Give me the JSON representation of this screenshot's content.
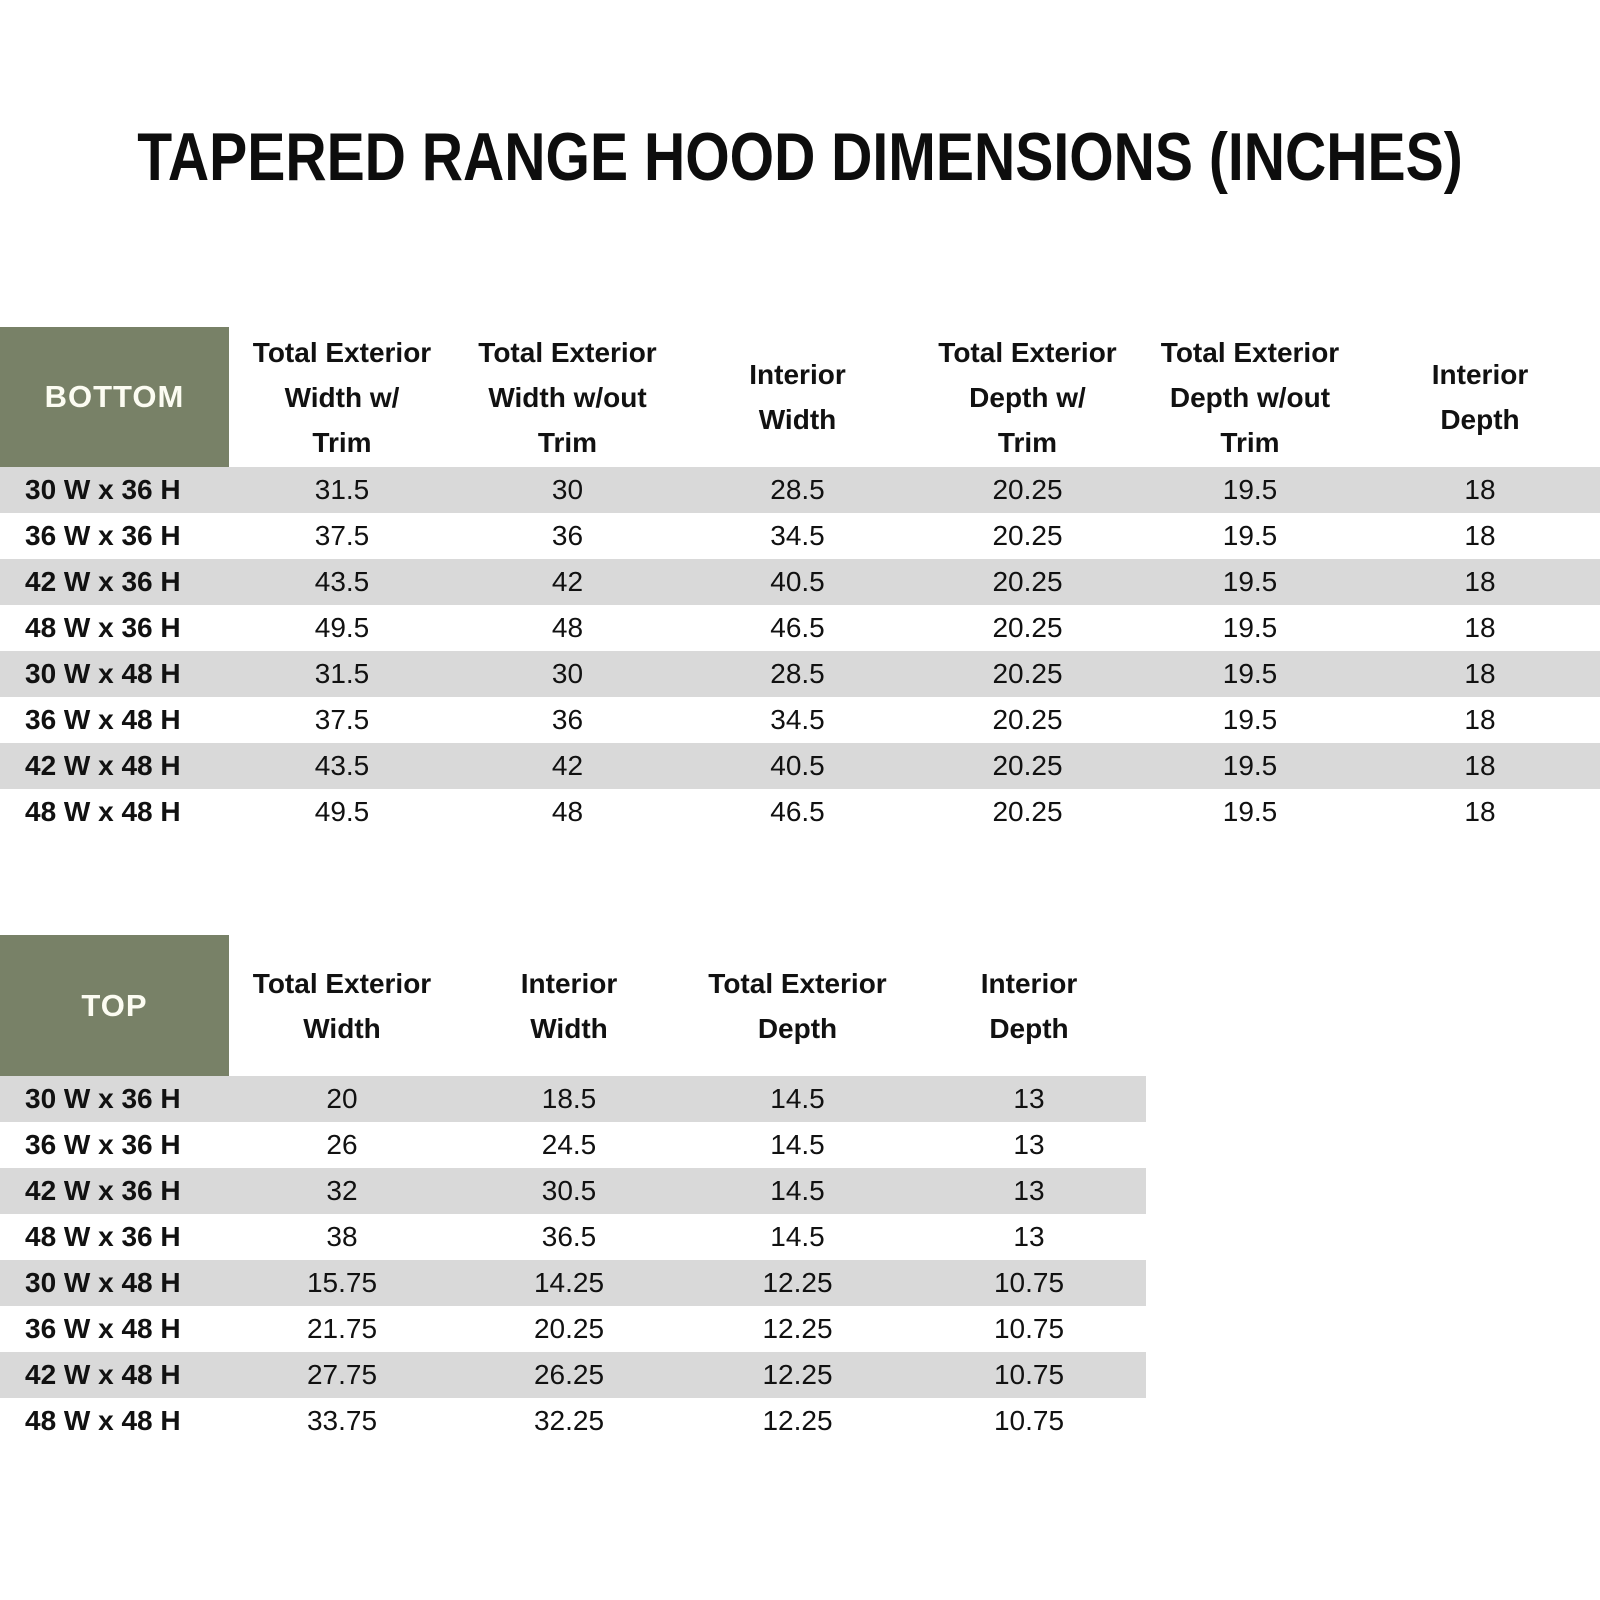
{
  "title": "TAPERED RANGE HOOD DIMENSIONS (INCHES)",
  "colors": {
    "header_green": "#788167",
    "row_gray": "#d9d9d9",
    "row_white": "#ffffff",
    "corner_text": "#fcfcf2",
    "body_text": "#111111"
  },
  "bottom_table": {
    "corner_label": "BOTTOM",
    "columns": [
      "Total Exterior\nWidth w/\nTrim",
      "Total Exterior\nWidth w/out\nTrim",
      "Interior\nWidth",
      "Total Exterior\nDepth w/\nTrim",
      "Total Exterior\nDepth w/out\nTrim",
      "Interior\nDepth"
    ],
    "rows": [
      {
        "label": "30 W x 36 H",
        "values": [
          "31.5",
          "30",
          "28.5",
          "20.25",
          "19.5",
          "18"
        ]
      },
      {
        "label": "36 W x 36 H",
        "values": [
          "37.5",
          "36",
          "34.5",
          "20.25",
          "19.5",
          "18"
        ]
      },
      {
        "label": "42 W x 36 H",
        "values": [
          "43.5",
          "42",
          "40.5",
          "20.25",
          "19.5",
          "18"
        ]
      },
      {
        "label": "48 W x 36 H",
        "values": [
          "49.5",
          "48",
          "46.5",
          "20.25",
          "19.5",
          "18"
        ]
      },
      {
        "label": "30 W x 48 H",
        "values": [
          "31.5",
          "30",
          "28.5",
          "20.25",
          "19.5",
          "18"
        ]
      },
      {
        "label": "36 W x 48 H",
        "values": [
          "37.5",
          "36",
          "34.5",
          "20.25",
          "19.5",
          "18"
        ]
      },
      {
        "label": "42 W x 48 H",
        "values": [
          "43.5",
          "42",
          "40.5",
          "20.25",
          "19.5",
          "18"
        ]
      },
      {
        "label": "48 W x 48 H",
        "values": [
          "49.5",
          "48",
          "46.5",
          "20.25",
          "19.5",
          "18"
        ]
      }
    ]
  },
  "top_table": {
    "corner_label": "TOP",
    "columns": [
      "Total Exterior\nWidth",
      "Interior\nWidth",
      "Total Exterior\nDepth",
      "Interior\nDepth"
    ],
    "rows": [
      {
        "label": "30 W x 36 H",
        "values": [
          "20",
          "18.5",
          "14.5",
          "13"
        ]
      },
      {
        "label": "36 W x 36 H",
        "values": [
          "26",
          "24.5",
          "14.5",
          "13"
        ]
      },
      {
        "label": "42 W x 36 H",
        "values": [
          "32",
          "30.5",
          "14.5",
          "13"
        ]
      },
      {
        "label": "48 W x 36 H",
        "values": [
          "38",
          "36.5",
          "14.5",
          "13"
        ]
      },
      {
        "label": "30 W x 48 H",
        "values": [
          "15.75",
          "14.25",
          "12.25",
          "10.75"
        ]
      },
      {
        "label": "36 W x 48 H",
        "values": [
          "21.75",
          "20.25",
          "12.25",
          "10.75"
        ]
      },
      {
        "label": "42 W x 48 H",
        "values": [
          "27.75",
          "26.25",
          "12.25",
          "10.75"
        ]
      },
      {
        "label": "48 W x 48 H",
        "values": [
          "33.75",
          "32.25",
          "12.25",
          "10.75"
        ]
      }
    ]
  }
}
